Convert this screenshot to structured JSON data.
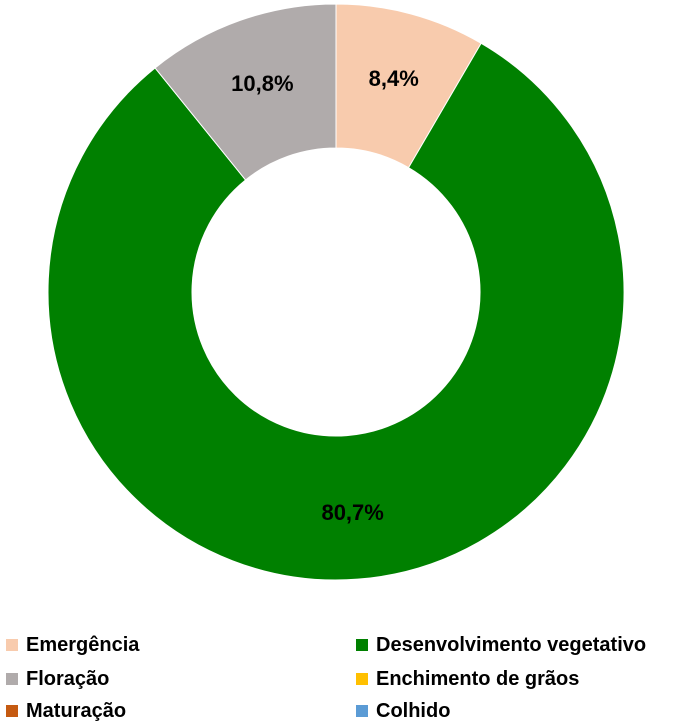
{
  "chart_data": {
    "type": "pie",
    "donut": true,
    "categories": [
      "Emergência",
      "Desenvolvimento vegetativo",
      "Floração",
      "Enchimento de grãos",
      "Maturação",
      "Colhido"
    ],
    "values": [
      8.4,
      80.7,
      10.8,
      0,
      0,
      0
    ],
    "data_labels": [
      "8,4%",
      "80,7%",
      "10,8%",
      "",
      "",
      ""
    ],
    "colors": [
      "#f8cbad",
      "#008000",
      "#b0abab",
      "#ffc000",
      "#c55a11",
      "#5b9bd5"
    ],
    "legend_position": "bottom"
  },
  "legend": {
    "items": [
      {
        "label": "Emergência",
        "color": "#f8cbad"
      },
      {
        "label": "Desenvolvimento vegetativo",
        "color": "#008000"
      },
      {
        "label": "Floração",
        "color": "#b0abab"
      },
      {
        "label": "Enchimento de grãos",
        "color": "#ffc000"
      },
      {
        "label": "Maturação",
        "color": "#c55a11"
      },
      {
        "label": "Colhido",
        "color": "#5b9bd5"
      }
    ]
  }
}
